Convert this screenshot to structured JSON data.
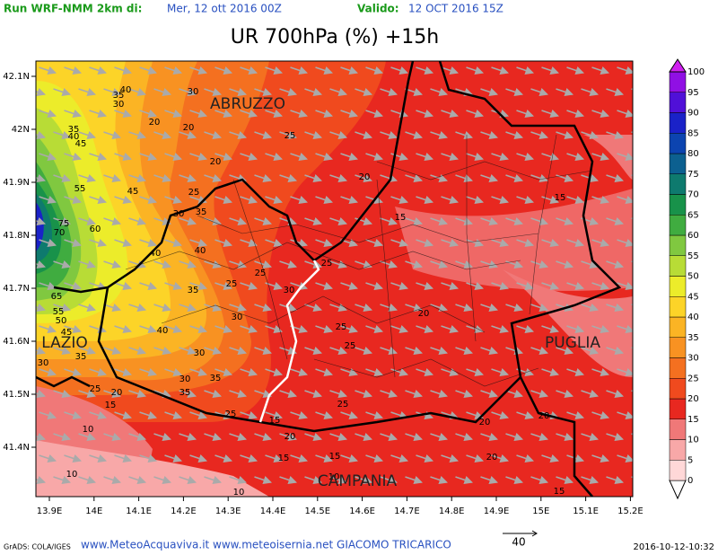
{
  "header": {
    "run": "Run WRF-NMM 2km di:",
    "run_date": "Mer, 12 ott 2016 00Z",
    "valid_label": "Valido:",
    "valid_date": "12 OCT 2016 15Z"
  },
  "title": "UR 700hPa (%) +15h",
  "map": {
    "lon_ticks": [
      "13.9E",
      "14E",
      "14.1E",
      "14.2E",
      "14.3E",
      "14.4E",
      "14.5E",
      "14.6E",
      "14.7E",
      "14.8E",
      "14.9E",
      "15E",
      "15.1E",
      "15.2E"
    ],
    "lat_ticks": [
      "42.1N",
      "42N",
      "41.9N",
      "41.8N",
      "41.7N",
      "41.6N",
      "41.5N",
      "41.4N"
    ],
    "regions": [
      "ABRUZZO",
      "LAZIO",
      "PUGLIA",
      "CAMPANIA"
    ],
    "contour_labels": [
      40,
      35,
      30,
      30,
      20,
      25,
      20,
      35,
      40,
      45,
      55,
      45,
      25,
      35,
      30,
      75,
      70,
      60,
      40,
      40,
      20,
      15,
      15,
      25,
      30,
      35,
      25,
      30,
      65,
      50,
      55,
      45,
      40,
      30,
      35,
      30,
      35,
      35,
      30,
      25,
      25,
      25,
      25,
      20,
      25,
      20,
      15,
      10,
      20,
      20,
      15,
      15,
      10,
      10,
      10,
      15,
      20,
      20,
      20,
      25,
      15
    ]
  },
  "colorbar": {
    "levels": [
      0,
      5,
      10,
      15,
      20,
      25,
      30,
      35,
      40,
      45,
      50,
      55,
      60,
      65,
      70,
      75,
      80,
      85,
      90,
      95,
      100
    ],
    "colors": [
      "#ffd8d8",
      "#f8a8a8",
      "#f07878",
      "#e82820",
      "#f04a1e",
      "#f47020",
      "#f89222",
      "#fbb424",
      "#fcd428",
      "#ecec2a",
      "#b8dc36",
      "#80c840",
      "#40ac40",
      "#18924a",
      "#0e7a6e",
      "#0c6090",
      "#0c44b0",
      "#1a22c8",
      "#5010d8",
      "#9010e4",
      "#d020f0"
    ]
  },
  "footer": {
    "credit": "GrADS: COLA/IGES",
    "site": "www.MeteoAcquaviva.it www.meteoisernia.net GIACOMO TRICARICO",
    "vector_ref": 40,
    "timestamp": "2016-10-12-10:32"
  }
}
